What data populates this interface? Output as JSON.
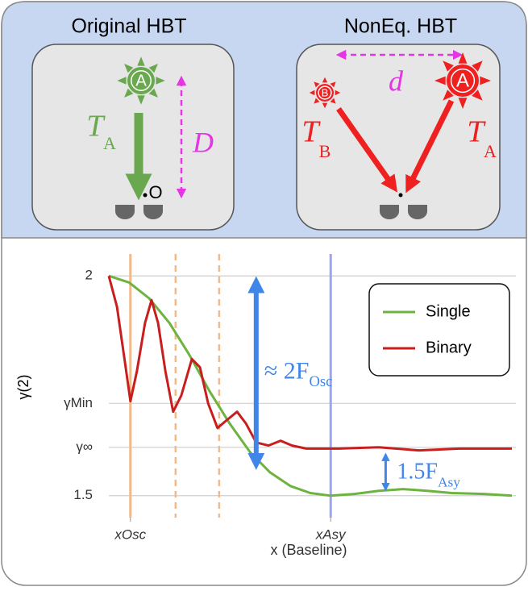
{
  "diagram": {
    "left_title": "Original HBT",
    "right_title": "NonEq. HBT",
    "left_source": "A",
    "left_temp": {
      "symbol": "T",
      "sub": "A"
    },
    "left_distance": "D",
    "observer": "O",
    "right_source_b": "B",
    "right_source_a": "A",
    "right_temp_b": {
      "symbol": "T",
      "sub": "B"
    },
    "right_temp_a": {
      "symbol": "T",
      "sub": "A"
    },
    "right_distance": "d"
  },
  "chart_data": {
    "type": "line",
    "ylabel": "γ(2)",
    "xlabel": "x (Baseline)",
    "xlim": [
      0,
      10
    ],
    "ylim": [
      1.45,
      2.05
    ],
    "xticks": [
      {
        "value": 0.53,
        "label": "xOsc"
      },
      {
        "value": 5.45,
        "label": "xAsy"
      }
    ],
    "yticks": [
      2,
      {
        "value": 1.71,
        "label": "γMin"
      },
      {
        "value": 1.61,
        "label": "γ∞"
      },
      1.5
    ],
    "grid": true,
    "legend": "upper right",
    "vlines": [
      {
        "x": 0.53,
        "color": "#f2b98a",
        "style": "solid"
      },
      {
        "x": 1.64,
        "color": "#f2b98a",
        "style": "dashed"
      },
      {
        "x": 2.71,
        "color": "#f2b98a",
        "style": "dashed"
      },
      {
        "x": 5.45,
        "color": "#9fa3ef",
        "style": "solid"
      }
    ],
    "annotations": [
      {
        "text": "≈ 2F",
        "sub": "Osc",
        "from": 1.995,
        "to": 1.563,
        "x": 3.62
      },
      {
        "text": "1.5F",
        "sub": "Asy",
        "from": 1.603,
        "to": 1.505,
        "x": 6.8
      }
    ],
    "series": [
      {
        "name": "Single",
        "color": "#6db33f",
        "x": [
          0,
          0.5,
          0.99,
          1.49,
          1.98,
          2.48,
          2.97,
          3.47,
          3.96,
          4.46,
          4.95,
          5.45,
          6.04,
          6.63,
          7.23,
          7.82,
          8.42,
          9.21,
          9.9
        ],
        "values": [
          2,
          1.985,
          1.949,
          1.893,
          1.82,
          1.737,
          1.664,
          1.599,
          1.553,
          1.522,
          1.506,
          1.5,
          1.504,
          1.511,
          1.515,
          1.511,
          1.506,
          1.504,
          1.5
        ]
      },
      {
        "name": "Binary",
        "color": "#c81e1e",
        "x": [
          0,
          0.2,
          0.4,
          0.53,
          0.69,
          0.89,
          1.05,
          1.21,
          1.39,
          1.58,
          1.78,
          2.04,
          2.24,
          2.44,
          2.67,
          2.91,
          3.15,
          3.37,
          3.62,
          3.92,
          4.22,
          4.5,
          4.85,
          5.64,
          6.63,
          7.62,
          8.61,
          9.9
        ],
        "values": [
          2,
          1.93,
          1.801,
          1.715,
          1.783,
          1.893,
          1.945,
          1.893,
          1.783,
          1.691,
          1.728,
          1.811,
          1.792,
          1.71,
          1.654,
          1.673,
          1.691,
          1.664,
          1.621,
          1.614,
          1.625,
          1.614,
          1.607,
          1.607,
          1.61,
          1.603,
          1.607,
          1.607
        ]
      }
    ]
  }
}
